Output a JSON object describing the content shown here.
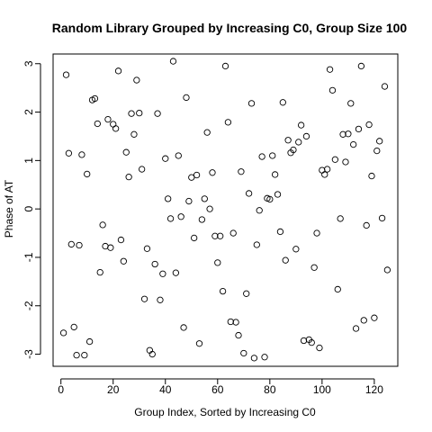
{
  "chart_data": {
    "type": "scatter",
    "title": "Random Library Grouped by Increasing C0, Group Size 100",
    "xlabel": "Group Index, Sorted by Increasing C0",
    "ylabel": "Phase of AT",
    "xlim": [
      -3,
      129
    ],
    "ylim": [
      -3.25,
      3.2
    ],
    "xticks": [
      0,
      20,
      40,
      60,
      80,
      100,
      120
    ],
    "yticks": [
      -3,
      -2,
      -1,
      0,
      1,
      2,
      3
    ],
    "grid": false,
    "marker": "open-circle",
    "points": [
      [
        1,
        -2.56
      ],
      [
        2,
        2.77
      ],
      [
        3,
        1.15
      ],
      [
        4,
        -0.73
      ],
      [
        5,
        -2.44
      ],
      [
        6,
        -3.02
      ],
      [
        7,
        -0.75
      ],
      [
        8,
        1.12
      ],
      [
        9,
        -3.02
      ],
      [
        10,
        0.72
      ],
      [
        11,
        -2.74
      ],
      [
        12,
        2.25
      ],
      [
        13,
        2.28
      ],
      [
        14,
        1.76
      ],
      [
        15,
        -1.31
      ],
      [
        16,
        -0.33
      ],
      [
        17,
        -0.77
      ],
      [
        18,
        1.85
      ],
      [
        19,
        -0.8
      ],
      [
        20,
        1.75
      ],
      [
        21,
        1.66
      ],
      [
        22,
        2.85
      ],
      [
        23,
        -0.64
      ],
      [
        24,
        -1.08
      ],
      [
        25,
        1.17
      ],
      [
        26,
        0.66
      ],
      [
        27,
        1.97
      ],
      [
        28,
        1.54
      ],
      [
        29,
        2.66
      ],
      [
        30,
        1.98
      ],
      [
        31,
        0.82
      ],
      [
        32,
        -1.86
      ],
      [
        33,
        -0.82
      ],
      [
        34,
        -2.92
      ],
      [
        35,
        -3.0
      ],
      [
        36,
        -1.14
      ],
      [
        37,
        1.97
      ],
      [
        38,
        -1.88
      ],
      [
        39,
        -1.34
      ],
      [
        40,
        1.04
      ],
      [
        41,
        0.21
      ],
      [
        42,
        -0.2
      ],
      [
        43,
        3.05
      ],
      [
        44,
        -1.32
      ],
      [
        45,
        1.1
      ],
      [
        46,
        -0.16
      ],
      [
        47,
        -2.45
      ],
      [
        48,
        2.3
      ],
      [
        49,
        0.16
      ],
      [
        50,
        0.65
      ],
      [
        51,
        -0.6
      ],
      [
        52,
        0.7
      ],
      [
        53,
        -2.78
      ],
      [
        54,
        -0.22
      ],
      [
        55,
        0.21
      ],
      [
        56,
        1.58
      ],
      [
        57,
        0.0
      ],
      [
        58,
        0.75
      ],
      [
        59,
        -0.56
      ],
      [
        60,
        -1.11
      ],
      [
        61,
        -0.56
      ],
      [
        62,
        -1.7
      ],
      [
        63,
        2.95
      ],
      [
        64,
        1.79
      ],
      [
        65,
        -2.33
      ],
      [
        66,
        -0.5
      ],
      [
        67,
        -2.34
      ],
      [
        68,
        -2.61
      ],
      [
        69,
        0.77
      ],
      [
        70,
        -2.98
      ],
      [
        71,
        -1.75
      ],
      [
        72,
        0.32
      ],
      [
        73,
        2.18
      ],
      [
        74,
        -3.08
      ],
      [
        75,
        -0.74
      ],
      [
        76,
        -0.03
      ],
      [
        77,
        1.08
      ],
      [
        78,
        -3.06
      ],
      [
        79,
        0.22
      ],
      [
        80,
        0.2
      ],
      [
        81,
        1.1
      ],
      [
        82,
        0.71
      ],
      [
        83,
        0.3
      ],
      [
        84,
        -0.47
      ],
      [
        85,
        2.2
      ],
      [
        86,
        -1.06
      ],
      [
        87,
        1.42
      ],
      [
        88,
        1.16
      ],
      [
        89,
        1.22
      ],
      [
        90,
        -0.83
      ],
      [
        91,
        1.38
      ],
      [
        92,
        1.73
      ],
      [
        93,
        -2.72
      ],
      [
        94,
        1.5
      ],
      [
        95,
        -2.7
      ],
      [
        96,
        -2.76
      ],
      [
        97,
        -1.21
      ],
      [
        98,
        -0.5
      ],
      [
        99,
        -2.87
      ],
      [
        100,
        0.8
      ],
      [
        101,
        0.71
      ],
      [
        102,
        0.82
      ],
      [
        103,
        2.88
      ],
      [
        104,
        2.45
      ],
      [
        105,
        1.02
      ],
      [
        106,
        -1.66
      ],
      [
        107,
        -0.2
      ],
      [
        108,
        1.54
      ],
      [
        109,
        0.97
      ],
      [
        110,
        1.55
      ],
      [
        111,
        2.18
      ],
      [
        112,
        1.33
      ],
      [
        113,
        -2.47
      ],
      [
        114,
        1.65
      ],
      [
        115,
        2.95
      ],
      [
        116,
        -2.3
      ],
      [
        117,
        -0.34
      ],
      [
        118,
        1.74
      ],
      [
        119,
        0.68
      ],
      [
        120,
        -2.25
      ],
      [
        121,
        1.2
      ],
      [
        122,
        1.4
      ],
      [
        123,
        -0.19
      ],
      [
        124,
        2.53
      ],
      [
        125,
        -1.26
      ]
    ]
  }
}
